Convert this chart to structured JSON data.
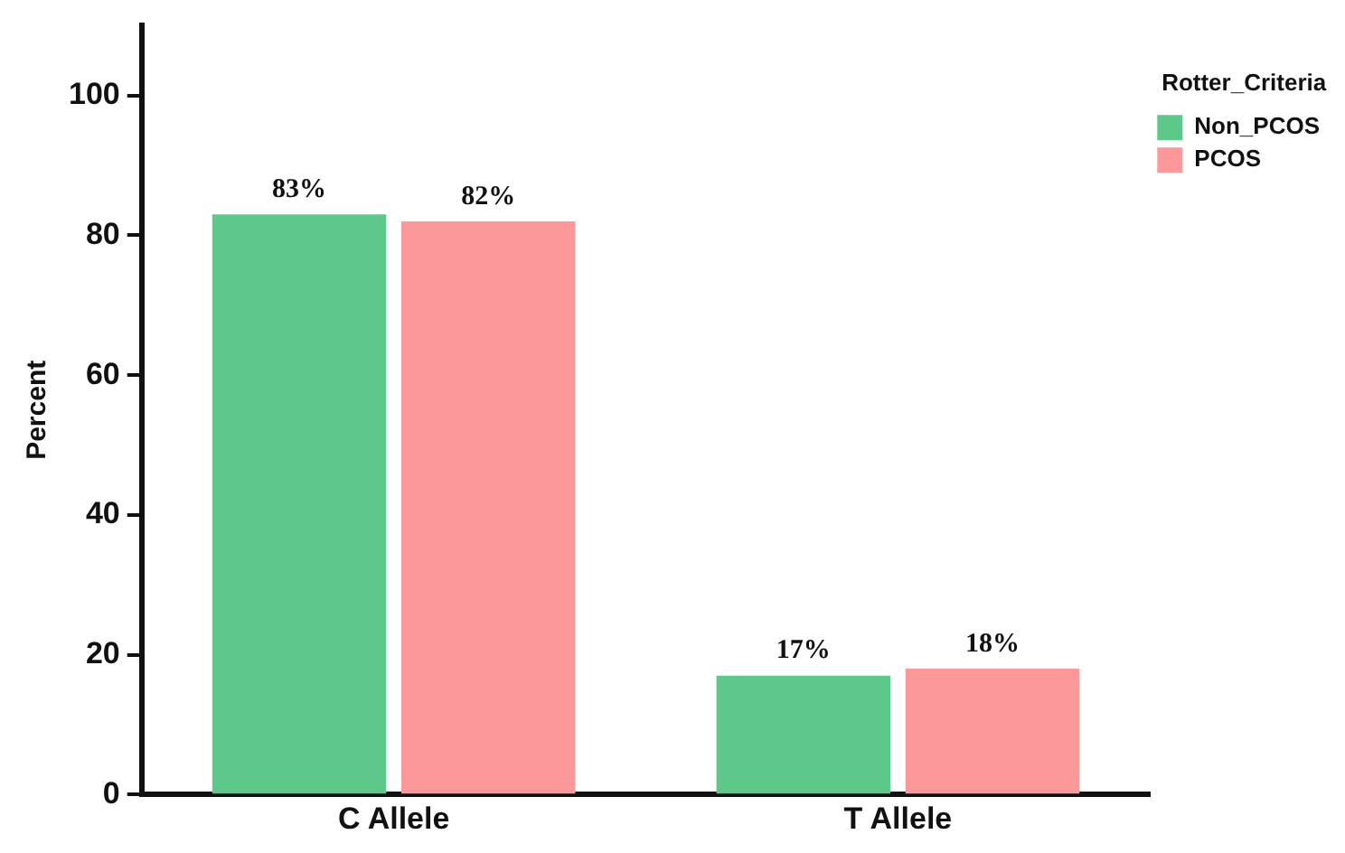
{
  "chart_data": {
    "type": "bar",
    "ylabel": "Percent",
    "legend_title": "Rotter_Criteria",
    "categories": [
      "C Allele",
      "T Allele"
    ],
    "series": [
      {
        "name": "Non_PCOS",
        "color": "#5ec88b",
        "values": [
          83,
          17
        ],
        "value_labels": [
          "83%",
          "17%"
        ]
      },
      {
        "name": "PCOS",
        "color": "#fc9899",
        "values": [
          82,
          18
        ],
        "value_labels": [
          "82%",
          "18%"
        ]
      }
    ],
    "ylim": [
      0,
      110
    ],
    "yticks": [
      0,
      20,
      40,
      60,
      80,
      100
    ],
    "grid": false,
    "legend": "top right"
  }
}
